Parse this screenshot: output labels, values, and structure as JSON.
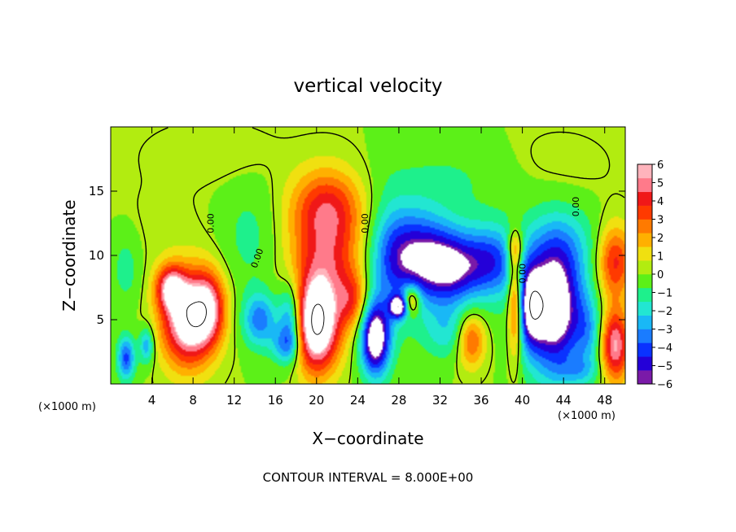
{
  "chart_data": {
    "type": "heatmap",
    "title": "vertical velocity",
    "xlabel": "X−coordinate",
    "ylabel": "Z−coordinate",
    "x_unit": "(×1000 m)",
    "x_unit_right": "(×1000 m)",
    "footer": "CONTOUR INTERVAL = 8.000E+00",
    "xlim": [
      0,
      50
    ],
    "ylim": [
      0,
      20
    ],
    "x_ticks": [
      4,
      8,
      12,
      16,
      20,
      24,
      28,
      32,
      36,
      40,
      44,
      48
    ],
    "y_ticks": [
      5,
      10,
      15
    ],
    "contour_labels": [
      "0.00",
      "0.00",
      "0.00",
      "0.00",
      "0.00"
    ],
    "colorbar": {
      "min": -6,
      "max": 6,
      "ticks": [
        "6",
        "5",
        "4",
        "3",
        "2",
        "1",
        "0",
        "−1",
        "−2",
        "−3",
        "−4",
        "−5",
        "−6"
      ],
      "colors": [
        "#7a1aa8",
        "#2400d8",
        "#0a32ff",
        "#1a7cff",
        "#19b8f6",
        "#22e6d2",
        "#1ef08c",
        "#5cf018",
        "#b2ec10",
        "#f0e010",
        "#ffb000",
        "#ff7a00",
        "#ff3a00",
        "#f01818",
        "#ff7a8a",
        "#ffb4bc"
      ]
    },
    "blobs": [
      {
        "x": 7.5,
        "z": 5.0,
        "v": 7.0,
        "sx": 1.8,
        "sz": 2.5
      },
      {
        "x": 9.5,
        "z": 6.0,
        "v": 4.0,
        "sx": 1.2,
        "sz": 2.0
      },
      {
        "x": 5.8,
        "z": 7.5,
        "v": 4.5,
        "sx": 1.0,
        "sz": 1.2
      },
      {
        "x": 20.0,
        "z": 4.5,
        "v": 7.5,
        "sx": 1.5,
        "sz": 2.5
      },
      {
        "x": 21.0,
        "z": 10.0,
        "v": 4.0,
        "sx": 2.5,
        "sz": 3.5
      },
      {
        "x": 21.0,
        "z": 14.0,
        "v": 2.5,
        "sx": 2.5,
        "sz": 2.0
      },
      {
        "x": 23.5,
        "z": 6.5,
        "v": 2.5,
        "sx": 1.0,
        "sz": 1.5
      },
      {
        "x": 25.7,
        "z": 3.5,
        "v": -7.0,
        "sx": 1.0,
        "sz": 2.0
      },
      {
        "x": 29.5,
        "z": 10.0,
        "v": -5.0,
        "sx": 2.5,
        "sz": 2.5
      },
      {
        "x": 33.0,
        "z": 9.0,
        "v": -4.5,
        "sx": 2.0,
        "sz": 2.0
      },
      {
        "x": 37.0,
        "z": 9.5,
        "v": -4.0,
        "sx": 2.0,
        "sz": 2.0
      },
      {
        "x": 29.2,
        "z": 6.5,
        "v": 4.0,
        "sx": 0.6,
        "sz": 0.8
      },
      {
        "x": 28.0,
        "z": 6.0,
        "v": -6.0,
        "sx": 0.6,
        "sz": 0.6
      },
      {
        "x": 35.0,
        "z": 3.5,
        "v": 4.0,
        "sx": 1.0,
        "sz": 1.5
      },
      {
        "x": 39.3,
        "z": 6.5,
        "v": 4.5,
        "sx": 0.5,
        "sz": 3.0
      },
      {
        "x": 39.3,
        "z": 10.5,
        "v": 2.5,
        "sx": 0.6,
        "sz": 1.0
      },
      {
        "x": 43.0,
        "z": 6.0,
        "v": -7.5,
        "sx": 2.0,
        "sz": 3.5
      },
      {
        "x": 40.8,
        "z": 6.0,
        "v": -4.0,
        "sx": 0.8,
        "sz": 2.0
      },
      {
        "x": 49.0,
        "z": 9.5,
        "v": 4.0,
        "sx": 1.2,
        "sz": 2.0
      },
      {
        "x": 49.0,
        "z": 3.0,
        "v": 5.5,
        "sx": 1.0,
        "sz": 2.0
      },
      {
        "x": 1.5,
        "z": 2.0,
        "v": -4.0,
        "sx": 0.6,
        "sz": 1.2
      },
      {
        "x": 3.5,
        "z": 3.0,
        "v": -3.0,
        "sx": 0.5,
        "sz": 1.0
      },
      {
        "x": 1.5,
        "z": 9.0,
        "v": -1.2,
        "sx": 1.0,
        "sz": 2.0
      },
      {
        "x": 14.5,
        "z": 5.0,
        "v": -3.5,
        "sx": 1.2,
        "sz": 1.5
      },
      {
        "x": 17.5,
        "z": 5.0,
        "v": -4.0,
        "sx": 0.8,
        "sz": 2.0
      },
      {
        "x": 17.0,
        "z": 3.0,
        "v": -2.5,
        "sx": 1.0,
        "sz": 1.0
      },
      {
        "x": 13.5,
        "z": 11.5,
        "v": -1.0,
        "sx": 2.0,
        "sz": 3.0
      },
      {
        "x": 27.0,
        "z": 9.0,
        "v": -1.5,
        "sx": 1.5,
        "sz": 4.0
      },
      {
        "x": 33.0,
        "z": 4.0,
        "v": -2.0,
        "sx": 2.0,
        "sz": 1.5
      },
      {
        "x": 44.0,
        "z": 11.0,
        "v": -1.5,
        "sx": 2.5,
        "sz": 2.0
      },
      {
        "x": 46.5,
        "z": 4.0,
        "v": -2.0,
        "sx": 1.0,
        "sz": 2.0
      },
      {
        "x": 45.5,
        "z": 1.0,
        "v": -1.5,
        "sx": 1.5,
        "sz": 0.8
      },
      {
        "x": 33.0,
        "z": 16.0,
        "v": -0.8,
        "sx": 5.0,
        "sz": 2.0
      },
      {
        "x": 10.0,
        "z": 18.0,
        "v": 0.6,
        "sx": 4.0,
        "sz": 1.5
      },
      {
        "x": 43.0,
        "z": 17.0,
        "v": 0.4,
        "sx": 4.0,
        "sz": 2.0
      },
      {
        "x": 5.0,
        "z": 12.0,
        "v": 0.3,
        "sx": 3.0,
        "sz": 3.0
      }
    ]
  }
}
